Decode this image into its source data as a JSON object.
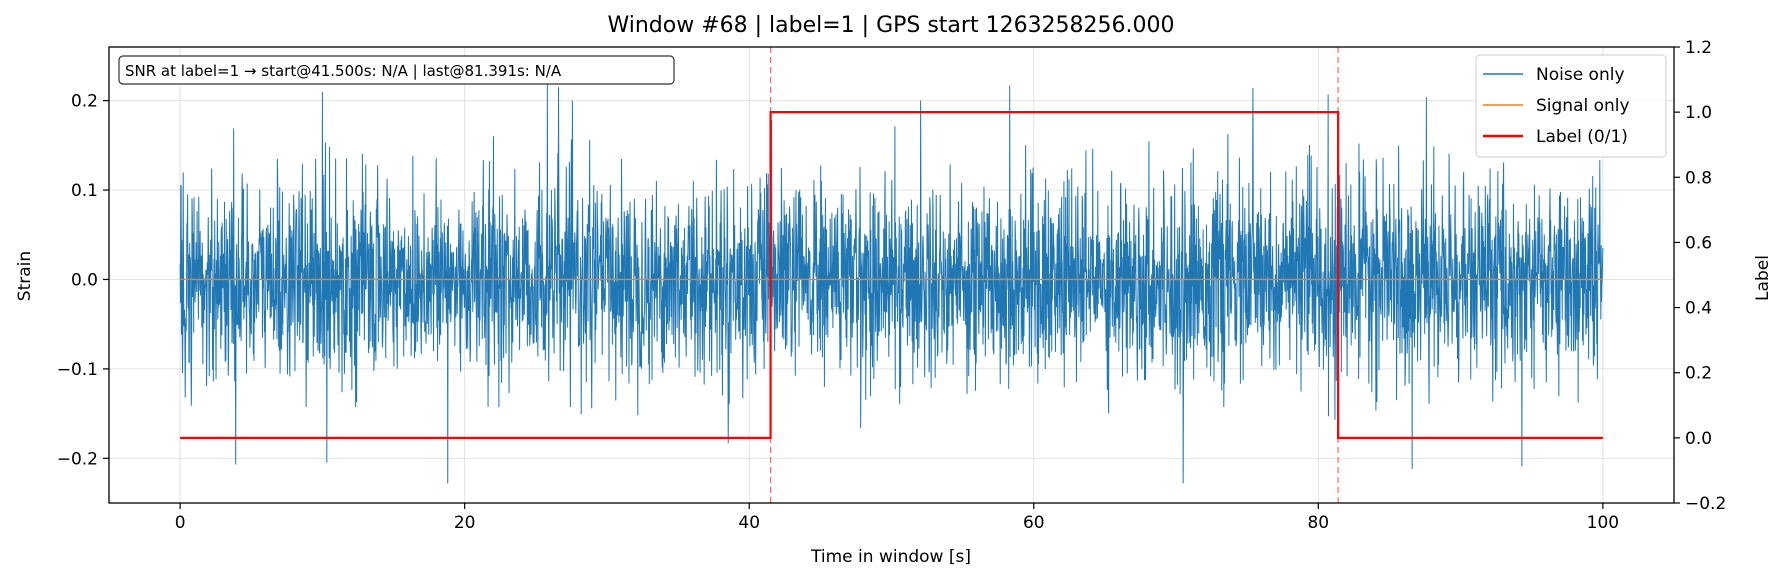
{
  "chart_data": {
    "type": "line",
    "title": "Window #68  |  label=1  |  GPS start 1263258256.000",
    "xlabel": "Time in window [s]",
    "ylabel": "Strain",
    "y2label": "Label",
    "xlim": [
      -5,
      105
    ],
    "ylim": [
      -0.25,
      0.26
    ],
    "y2lim": [
      -0.2,
      1.2
    ],
    "x_ticks": [
      0,
      20,
      40,
      60,
      80,
      100
    ],
    "y_ticks": [
      -0.2,
      -0.1,
      0.0,
      0.1,
      0.2
    ],
    "y2_ticks": [
      -0.2,
      0.0,
      0.2,
      0.4,
      0.6,
      0.8,
      1.0,
      1.2
    ],
    "grid": true,
    "legend_position": "top-right",
    "annotation": "SNR at label=1 → start@41.500s: N/A | last@81.391s: N/A",
    "vlines": [
      41.5,
      81.391
    ],
    "series": [
      {
        "name": "Noise only",
        "color": "#1f77b4",
        "x_range": [
          0,
          100
        ],
        "typical_envelope": [
          -0.14,
          0.14
        ],
        "peaks": [
          [
            3.9,
            -0.207
          ],
          [
            10.0,
            0.21
          ],
          [
            10.3,
            -0.205
          ],
          [
            18.8,
            -0.228
          ],
          [
            25.8,
            0.219
          ],
          [
            26.6,
            0.215
          ],
          [
            58.3,
            0.217
          ],
          [
            70.5,
            -0.228
          ],
          [
            75.4,
            0.214
          ],
          [
            80.7,
            0.207
          ],
          [
            86.6,
            -0.212
          ],
          [
            87.6,
            0.204
          ],
          [
            94.3,
            -0.209
          ]
        ]
      },
      {
        "name": "Signal only",
        "color": "#ff7f0e",
        "x": [
          0,
          100
        ],
        "y": [
          0,
          0
        ]
      },
      {
        "name": "Label (0/1)",
        "color": "#ff0000",
        "axis": "right",
        "x": [
          0,
          41.5,
          41.5,
          81.391,
          81.391,
          100
        ],
        "y": [
          0,
          0,
          1,
          1,
          0,
          0
        ]
      }
    ]
  }
}
